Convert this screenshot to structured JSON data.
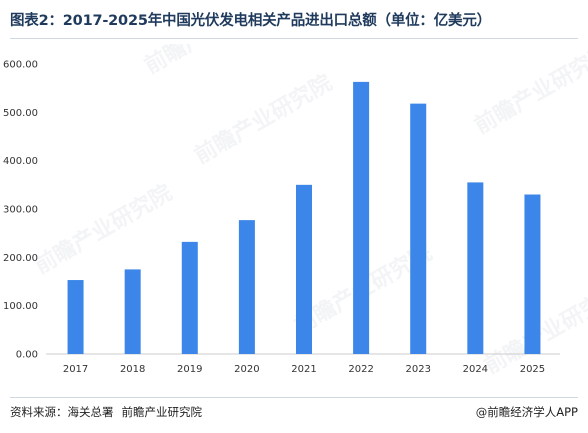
{
  "title": "图表2：2017-2025年中国光伏发电相关产品进出口总额（单位：亿美元）",
  "footer": {
    "source_label": "资料来源：海关总署",
    "source_org": "前瞻产业研究院",
    "credit": "@前瞻经济学人APP"
  },
  "watermark": {
    "text": "前瞻产业研究院"
  },
  "chart_data": {
    "type": "bar",
    "categories": [
      "2017",
      "2018",
      "2019",
      "2020",
      "2021",
      "2022",
      "2023",
      "2024",
      "2025"
    ],
    "values": [
      153,
      175,
      232,
      277,
      350,
      563,
      518,
      355,
      330
    ],
    "y_ticks": [
      "0.00",
      "100.00",
      "200.00",
      "300.00",
      "400.00",
      "500.00",
      "600.00"
    ],
    "ylim": [
      0,
      600
    ],
    "grid": false,
    "legend": "none",
    "bar_color": "#3b86e8",
    "axis_color": "#cccccc"
  }
}
